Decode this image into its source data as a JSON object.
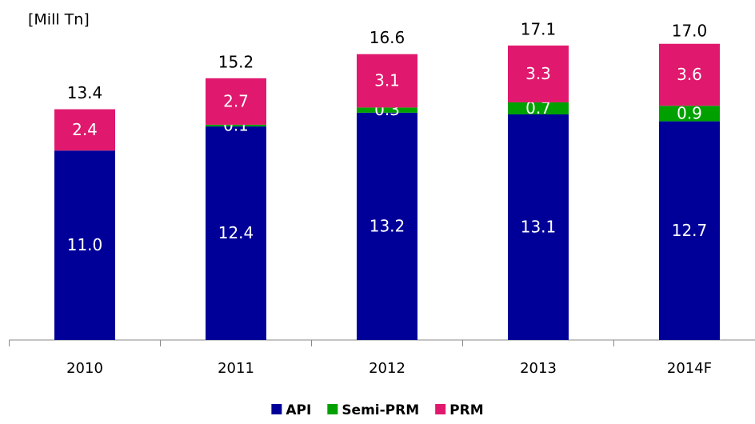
{
  "chart_data": {
    "type": "bar",
    "stacked": true,
    "unit_label": "[Mill Tn]",
    "categories": [
      "2010",
      "2011",
      "2012",
      "2013",
      "2014F"
    ],
    "series": [
      {
        "name": "API",
        "color": "#000099",
        "values": [
          11.0,
          12.4,
          13.2,
          13.1,
          12.7
        ],
        "value_labels": [
          "11.0",
          "12.4",
          "13.2",
          "13.1",
          "12.7"
        ]
      },
      {
        "name": "Semi-PRM",
        "color": "#00a000",
        "values": [
          0,
          0.1,
          0.3,
          0.7,
          0.9
        ],
        "value_labels": [
          null,
          "0.1",
          "0.3",
          "0.7",
          "0.9"
        ]
      },
      {
        "name": "PRM",
        "color": "#e0196e",
        "values": [
          2.4,
          2.7,
          3.1,
          3.3,
          3.6
        ],
        "value_labels": [
          "2.4",
          "2.7",
          "3.1",
          "3.3",
          "3.6"
        ]
      }
    ],
    "totals": [
      13.4,
      15.2,
      16.6,
      17.1,
      17.0
    ],
    "total_labels": [
      "13.4",
      "15.2",
      "16.6",
      "17.1",
      "17.0"
    ],
    "ylim": [
      0,
      19
    ],
    "legend": "bottom"
  }
}
